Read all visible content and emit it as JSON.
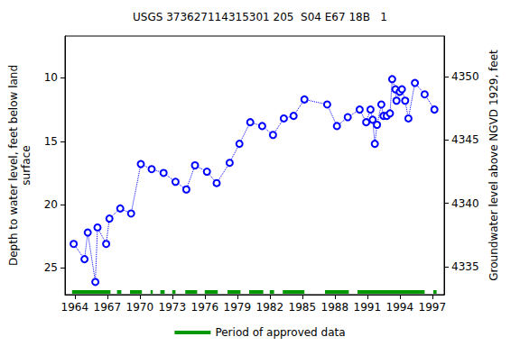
{
  "chart_data": {
    "type": "line",
    "title": "USGS 373627114315301 205  S04 E67 18B   1",
    "y_label": "Depth to water level, feet below land\nsurface",
    "y2_label": "Groundwater level above NGVD 1929, feet",
    "x": [
      1963.9,
      1964.9,
      1965.2,
      1965.9,
      1966.1,
      1966.9,
      1967.2,
      1968.2,
      1969.2,
      1970.1,
      1971.1,
      1972.2,
      1973.3,
      1974.3,
      1975.1,
      1976.2,
      1977.1,
      1978.3,
      1979.2,
      1980.2,
      1981.3,
      1982.3,
      1983.3,
      1984.2,
      1985.2,
      1987.3,
      1988.2,
      1989.2,
      1990.3,
      1990.9,
      1991.3,
      1991.5,
      1991.7,
      1991.9,
      1992.3,
      1992.5,
      1992.8,
      1993.1,
      1993.3,
      1993.6,
      1993.7,
      1994.0,
      1994.2,
      1994.5,
      1994.8,
      1995.4,
      1996.3,
      1997.2
    ],
    "values": [
      23.1,
      24.3,
      22.2,
      26.1,
      21.8,
      23.1,
      21.1,
      20.3,
      20.7,
      16.8,
      17.2,
      17.5,
      18.2,
      18.8,
      16.9,
      17.4,
      18.3,
      16.7,
      15.2,
      13.5,
      13.8,
      14.5,
      13.2,
      13.0,
      11.7,
      12.1,
      13.8,
      13.1,
      12.5,
      13.5,
      12.5,
      13.3,
      15.2,
      13.7,
      12.1,
      13.0,
      13.0,
      12.8,
      10.1,
      10.9,
      11.8,
      11.1,
      10.9,
      11.8,
      13.2,
      10.4,
      11.3,
      12.5
    ],
    "color": "#0000ff",
    "marker": "circle",
    "line_style": "dotted",
    "xlim": [
      1963.1,
      1998.1
    ],
    "xticks": [
      1964,
      1967,
      1970,
      1973,
      1976,
      1979,
      1982,
      1985,
      1988,
      1991,
      1994,
      1997
    ],
    "ylim": [
      27.1,
      6.7
    ],
    "yticks": [
      10,
      15,
      20,
      25
    ],
    "y2lim": [
      4332.8,
      4353.2
    ],
    "y2ticks": [
      4335,
      4340,
      4345,
      4350
    ],
    "grid": false,
    "approved_data": {
      "label": "Period of approved data",
      "color": "#009900",
      "periods": [
        [
          1963.75,
          1967.3
        ],
        [
          1967.9,
          1968.3
        ],
        [
          1969.1,
          1970.2
        ],
        [
          1971.0,
          1971.2
        ],
        [
          1971.9,
          1972.3
        ],
        [
          1973.0,
          1973.3
        ],
        [
          1974.2,
          1975.3
        ],
        [
          1976.0,
          1977.2
        ],
        [
          1978.1,
          1979.3
        ],
        [
          1980.1,
          1981.4
        ],
        [
          1982.0,
          1982.4
        ],
        [
          1983.2,
          1985.2
        ],
        [
          1987.1,
          1989.3
        ],
        [
          1990.1,
          1996.3
        ],
        [
          1997.1,
          1997.4
        ]
      ]
    }
  }
}
